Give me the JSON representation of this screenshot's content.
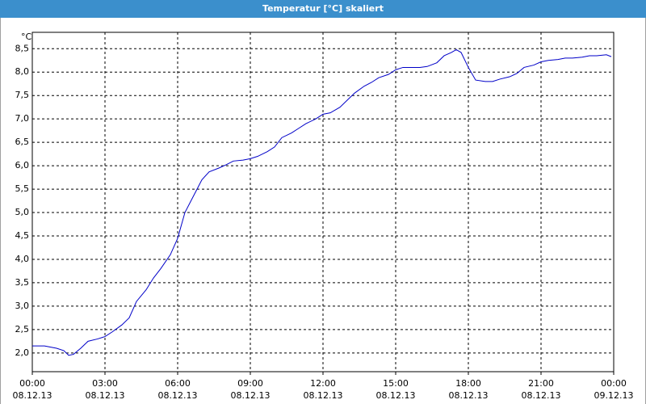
{
  "chart_data": {
    "type": "line",
    "title": "Temperatur [°C] skaliert",
    "y_unit": "°C",
    "x": [
      0,
      0.5,
      1.0,
      1.3,
      1.5,
      1.7,
      2.0,
      2.3,
      2.7,
      3.0,
      3.3,
      3.7,
      4.0,
      4.3,
      4.7,
      5.0,
      5.3,
      5.7,
      6.0,
      6.3,
      6.7,
      7.0,
      7.3,
      7.7,
      8.0,
      8.3,
      8.7,
      9.0,
      9.3,
      9.7,
      10.0,
      10.3,
      10.7,
      11.0,
      11.3,
      11.7,
      12.0,
      12.3,
      12.7,
      13.0,
      13.3,
      13.7,
      14.0,
      14.3,
      14.7,
      15.0,
      15.3,
      15.7,
      16.0,
      16.3,
      16.7,
      17.0,
      17.3,
      17.5,
      17.7,
      18.0,
      18.3,
      18.7,
      19.0,
      19.3,
      19.7,
      20.0,
      20.3,
      20.7,
      21.0,
      21.3,
      21.7,
      22.0,
      22.3,
      22.7,
      23.0,
      23.3,
      23.7,
      23.9
    ],
    "values": [
      2.15,
      2.15,
      2.1,
      2.05,
      1.95,
      1.97,
      2.1,
      2.25,
      2.3,
      2.35,
      2.45,
      2.6,
      2.75,
      3.1,
      3.35,
      3.6,
      3.8,
      4.1,
      4.45,
      5.0,
      5.4,
      5.7,
      5.87,
      5.95,
      6.02,
      6.1,
      6.12,
      6.15,
      6.2,
      6.3,
      6.4,
      6.6,
      6.7,
      6.8,
      6.9,
      7.0,
      7.1,
      7.13,
      7.25,
      7.4,
      7.55,
      7.7,
      7.78,
      7.88,
      7.95,
      8.05,
      8.1,
      8.1,
      8.1,
      8.12,
      8.2,
      8.35,
      8.42,
      8.48,
      8.42,
      8.1,
      7.83,
      7.8,
      7.8,
      7.85,
      7.9,
      7.97,
      8.1,
      8.15,
      8.22,
      8.25,
      8.27,
      8.3,
      8.3,
      8.32,
      8.35,
      8.35,
      8.37,
      8.33
    ],
    "color": "#0000c8",
    "xlim": [
      0,
      24
    ],
    "xticks": [
      {
        "value": 0,
        "label": "00:00",
        "date": "08.12.13"
      },
      {
        "value": 3,
        "label": "03:00",
        "date": "08.12.13"
      },
      {
        "value": 6,
        "label": "06:00",
        "date": "08.12.13"
      },
      {
        "value": 9,
        "label": "09:00",
        "date": "08.12.13"
      },
      {
        "value": 12,
        "label": "12:00",
        "date": "08.12.13"
      },
      {
        "value": 15,
        "label": "15:00",
        "date": "08.12.13"
      },
      {
        "value": 18,
        "label": "18:00",
        "date": "08.12.13"
      },
      {
        "value": 21,
        "label": "21:00",
        "date": "08.12.13"
      },
      {
        "value": 24,
        "label": "00:00",
        "date": "09.12.13"
      }
    ],
    "ylim": [
      1.6,
      8.85
    ],
    "yticks": [
      {
        "value": 2.0,
        "label": "2,0"
      },
      {
        "value": 2.5,
        "label": "2,5"
      },
      {
        "value": 3.0,
        "label": "3,0"
      },
      {
        "value": 3.5,
        "label": "3,5"
      },
      {
        "value": 4.0,
        "label": "4,0"
      },
      {
        "value": 4.5,
        "label": "4,5"
      },
      {
        "value": 5.0,
        "label": "5,0"
      },
      {
        "value": 5.5,
        "label": "5,5"
      },
      {
        "value": 6.0,
        "label": "6,0"
      },
      {
        "value": 6.5,
        "label": "6,5"
      },
      {
        "value": 7.0,
        "label": "7,0"
      },
      {
        "value": 7.5,
        "label": "7,5"
      },
      {
        "value": 8.0,
        "label": "8,0"
      },
      {
        "value": 8.5,
        "label": "8,5"
      }
    ],
    "grid": true
  }
}
